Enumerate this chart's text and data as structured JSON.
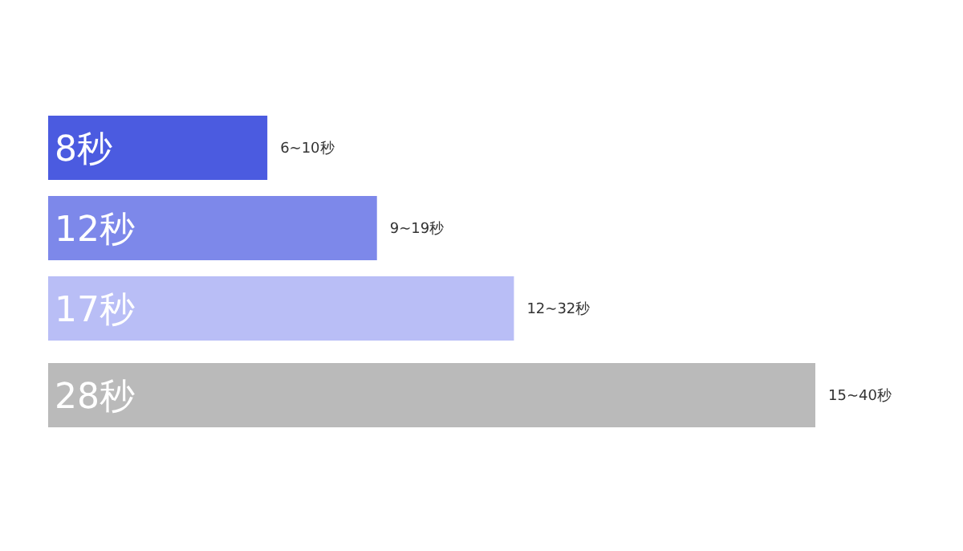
{
  "chart_data": {
    "type": "bar",
    "orientation": "horizontal",
    "categories": [
      null,
      null,
      null,
      null
    ],
    "values": [
      8,
      12,
      17,
      28
    ],
    "colors": [
      "#4b5be0",
      "#7d88ea",
      "#b9bef6",
      "#bababa"
    ],
    "value_labels": [
      "8秒",
      "12秒",
      "17秒",
      "28秒"
    ],
    "annotations": [
      {
        "text": "6~10秒",
        "x": 8
      },
      {
        "text": "9~19秒",
        "x": 12
      },
      {
        "text": "12~32秒",
        "x": 17
      },
      {
        "text": "15~40秒",
        "x": 28
      }
    ],
    "data_labels": false
  }
}
